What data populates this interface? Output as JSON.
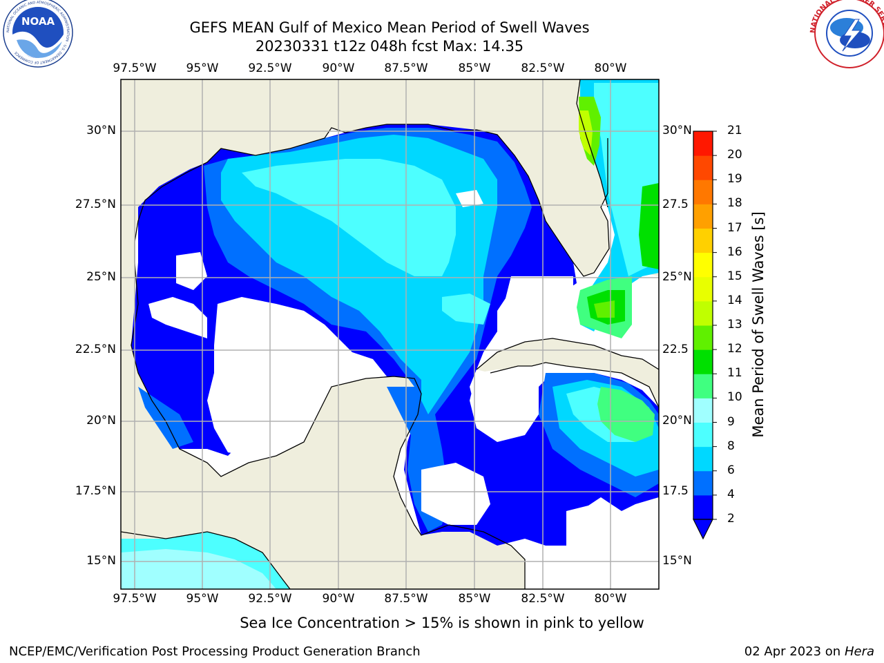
{
  "header": {
    "title_line1": "GEFS MEAN Gulf of Mexico Mean Period of Swell Waves",
    "title_line2": "20230331 t12z 048h fcst   Max: 14.35"
  },
  "logos": {
    "left": "noaa-logo",
    "left_text": "NOAA",
    "left_ring_text": "NATIONAL OCEANIC AND ATMOSPHERIC ADMINISTRATION · U.S. DEPARTMENT OF COMMERCE",
    "right": "nws-logo",
    "right_ring_text": "NATIONAL WEATHER SERVICE"
  },
  "map": {
    "lon_ticks": [
      "97.5°W",
      "95°W",
      "92.5°W",
      "90°W",
      "87.5°W",
      "85°W",
      "82.5°W",
      "80°W"
    ],
    "lat_ticks_left": [
      "30°N",
      "27.5°N",
      "25°N",
      "22.5°N",
      "20°N",
      "17.5°N",
      "15°N"
    ],
    "lat_ticks_right": [
      "30°N",
      "27.5",
      "25°N",
      "22.5",
      "20°N",
      "17.5",
      "15°N"
    ],
    "land_color": "#efeedd",
    "coast_color": "#000000",
    "grid_color": "#b0b0b0"
  },
  "colorbar": {
    "label": "Mean Period of Swell Waves [s]",
    "ticks": [
      "2",
      "4",
      "6",
      "8",
      "9",
      "10",
      "11",
      "12",
      "13",
      "14",
      "15",
      "16",
      "17",
      "18",
      "19",
      "20",
      "21"
    ],
    "colors": [
      "#0000ff",
      "#0070ff",
      "#00d8ff",
      "#4dffff",
      "#a0ffff",
      "#40ff80",
      "#00e000",
      "#60f000",
      "#c0ff00",
      "#e8ff00",
      "#ffff00",
      "#ffd000",
      "#ffa000",
      "#ff7800",
      "#ff4800",
      "#ff1800"
    ]
  },
  "chart_data": {
    "type": "heatmap",
    "region": "Gulf of Mexico",
    "variable": "Mean Period of Swell Waves",
    "units": "s",
    "max_value": 14.35,
    "lon_range": [
      -98.1,
      -78.5
    ],
    "lat_range": [
      14,
      31.8
    ],
    "color_levels": [
      2,
      4,
      6,
      8,
      9,
      10,
      11,
      12,
      13,
      14,
      15,
      16,
      17,
      18,
      19,
      20,
      21
    ]
  },
  "annotation": "Sea Ice Concentration > 15% is shown in pink to yellow",
  "footer": {
    "left": "NCEP/EMC/Verification Post Processing Product Generation Branch",
    "date": "02 Apr 2023 on ",
    "machine": "Hera"
  }
}
